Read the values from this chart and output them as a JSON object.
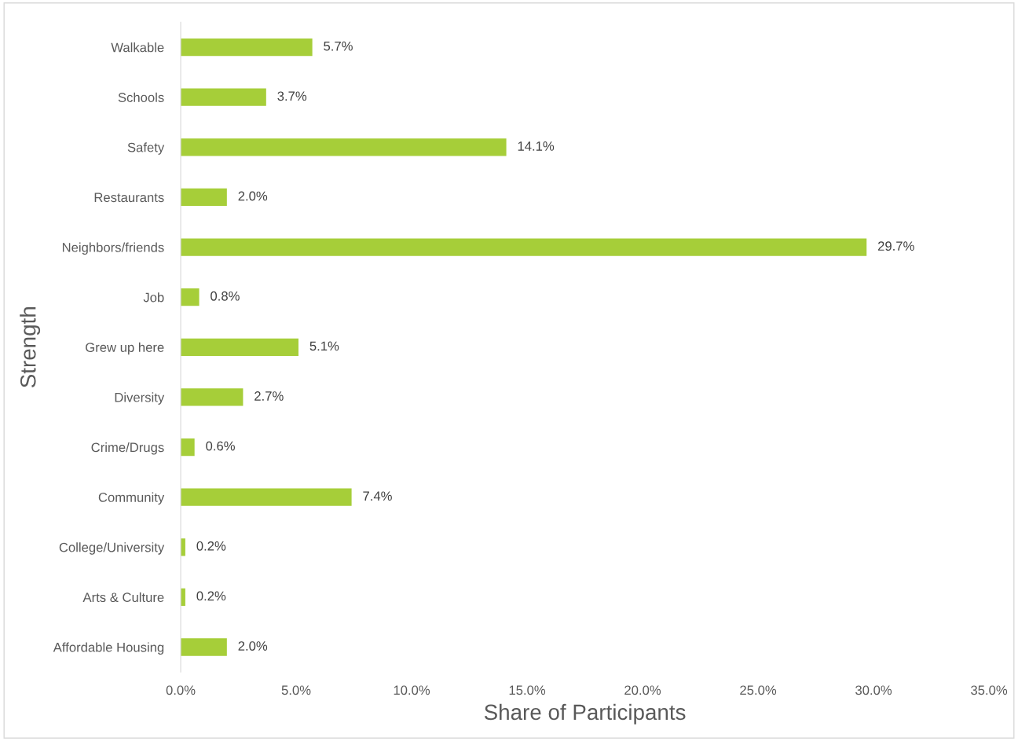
{
  "chart_data": {
    "type": "bar",
    "orientation": "horizontal",
    "xlabel": "Share of Participants",
    "ylabel": "Strength",
    "categories": [
      "Walkable",
      "Schools",
      "Safety",
      "Restaurants",
      "Neighbors/friends",
      "Job",
      "Grew up here",
      "Diversity",
      "Crime/Drugs",
      "Community",
      "College/University",
      "Arts & Culture",
      "Affordable Housing"
    ],
    "values": [
      5.7,
      3.7,
      14.1,
      2.0,
      29.7,
      0.8,
      5.1,
      2.7,
      0.6,
      7.4,
      0.2,
      0.2,
      2.0
    ],
    "value_labels": [
      "5.7%",
      "3.7%",
      "14.1%",
      "2.0%",
      "29.7%",
      "0.8%",
      "5.1%",
      "2.7%",
      "0.6%",
      "7.4%",
      "0.2%",
      "0.2%",
      "2.0%"
    ],
    "color": "#a6ce39",
    "xlim": [
      0,
      35
    ],
    "xticks": [
      {
        "value": 0,
        "label": "0.0%"
      },
      {
        "value": 5,
        "label": "5.0%"
      },
      {
        "value": 10,
        "label": "10.0%"
      },
      {
        "value": 15,
        "label": "15.0%"
      },
      {
        "value": 20,
        "label": "20.0%"
      },
      {
        "value": 25,
        "label": "25.0%"
      },
      {
        "value": 30,
        "label": "30.0%"
      },
      {
        "value": 35,
        "label": "35.0%"
      }
    ],
    "grid": false
  }
}
